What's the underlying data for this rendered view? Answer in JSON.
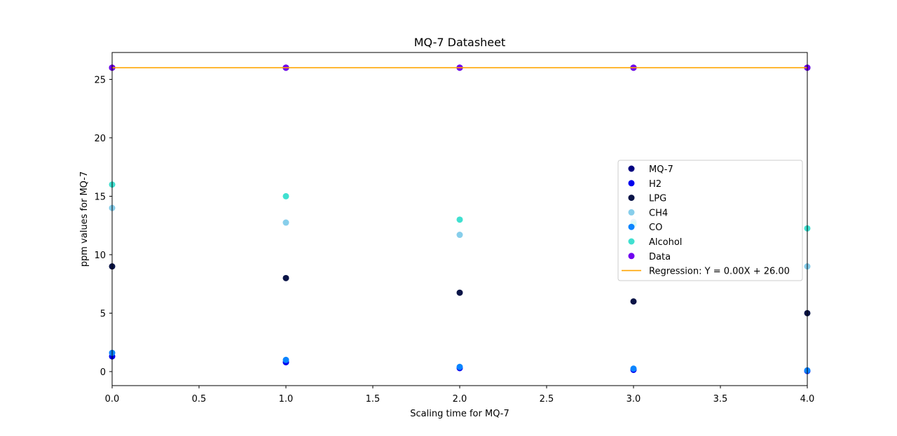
{
  "chart_data": {
    "type": "scatter",
    "title": "MQ-7 Datasheet",
    "xlabel": "Scaling time for MQ-7",
    "ylabel": "ppm values for MQ-7",
    "xlim": [
      0.0,
      4.0
    ],
    "ylim": [
      -1.2,
      27.3
    ],
    "xticks": [
      0.0,
      0.5,
      1.0,
      1.5,
      2.0,
      2.5,
      3.0,
      3.5,
      4.0
    ],
    "xtick_labels": [
      "0.0",
      "0.5",
      "1.0",
      "1.5",
      "2.0",
      "2.5",
      "3.0",
      "3.5",
      "4.0"
    ],
    "yticks": [
      0,
      5,
      10,
      15,
      20,
      25
    ],
    "ytick_labels": [
      "0",
      "5",
      "10",
      "15",
      "20",
      "25"
    ],
    "grid": false,
    "legend_position": "center-right",
    "x": [
      0,
      1,
      2,
      3,
      4
    ],
    "series": [
      {
        "name": "MQ-7",
        "color": "#000080",
        "marker": "circle",
        "values": [
          26,
          26,
          26,
          26,
          26
        ]
      },
      {
        "name": "H2",
        "color": "#0000EE",
        "marker": "circle",
        "values": [
          1.3,
          0.8,
          0.3,
          0.15,
          0.05
        ]
      },
      {
        "name": "LPG",
        "color": "#0A1447",
        "marker": "circle",
        "values": [
          9.0,
          8.0,
          6.75,
          6.0,
          5.0
        ]
      },
      {
        "name": "CH4",
        "color": "#87CEEB",
        "marker": "circle",
        "values": [
          14.0,
          12.75,
          11.7,
          12.8,
          9.0
        ]
      },
      {
        "name": "CO",
        "color": "#0A84FF",
        "marker": "circle",
        "values": [
          1.6,
          1.0,
          0.4,
          0.25,
          0.1
        ]
      },
      {
        "name": "Alcohol",
        "color": "#40E0D0",
        "marker": "circle",
        "values": [
          16.0,
          15.0,
          13.0,
          12.6,
          12.25
        ]
      },
      {
        "name": "Data",
        "color": "#7000F0",
        "marker": "circle",
        "values": [
          26,
          26,
          26,
          26,
          26
        ]
      },
      {
        "name": "Regression: Y = 0.00X + 26.00",
        "color": "#FFA500",
        "marker": "line",
        "values": [
          26,
          26,
          26,
          26,
          26
        ]
      }
    ]
  }
}
